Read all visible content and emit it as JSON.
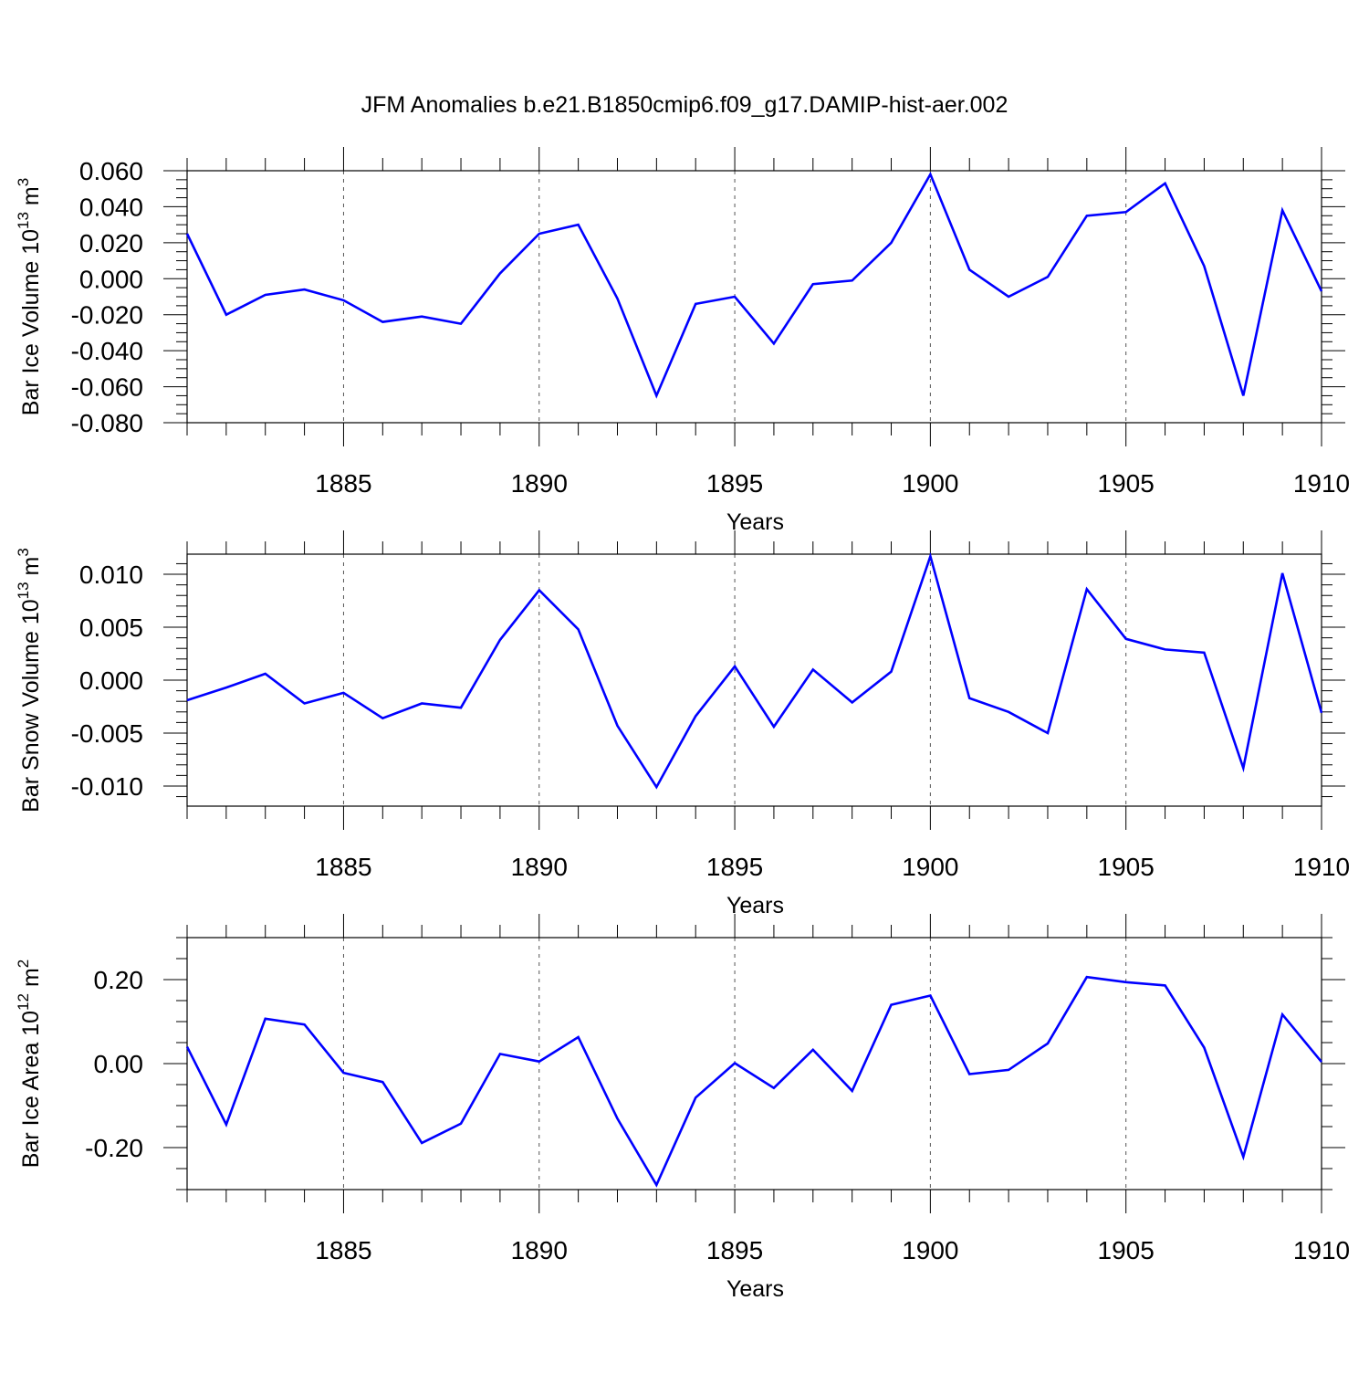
{
  "figure": {
    "title": "JFM Anomalies b.e21.B1850cmip6.f09_g17.DAMIP-hist-aer.002",
    "line_color": "#0000ff"
  },
  "chart_data": [
    {
      "type": "line",
      "ylabel": "Bar Ice Volume 10",
      "ylabel_sup": "13",
      "ylabel_unit": " m",
      "ylabel_unit_sup": "3",
      "xlabel": "Years",
      "xlim": [
        1881,
        1910
      ],
      "ylim": [
        -0.08,
        0.06
      ],
      "x_ticks": [
        1885,
        1890,
        1895,
        1900,
        1905,
        1910
      ],
      "y_ticks": [
        0.06,
        0.04,
        0.02,
        0.0,
        -0.02,
        -0.04,
        -0.06,
        -0.08
      ],
      "y_tick_labels": [
        "0.060",
        "0.040",
        "0.020",
        "0.000",
        "-0.020",
        "-0.040",
        "-0.060",
        "-0.080"
      ],
      "y_minor_step": 0.005,
      "x": [
        1881,
        1882,
        1883,
        1884,
        1885,
        1886,
        1887,
        1888,
        1889,
        1890,
        1891,
        1892,
        1893,
        1894,
        1895,
        1896,
        1897,
        1898,
        1899,
        1900,
        1901,
        1902,
        1903,
        1904,
        1905,
        1906,
        1907,
        1908,
        1909,
        1910
      ],
      "values": [
        0.025,
        -0.02,
        -0.009,
        -0.006,
        -0.012,
        -0.024,
        -0.021,
        -0.025,
        0.003,
        0.025,
        0.03,
        -0.011,
        -0.065,
        -0.014,
        -0.01,
        -0.036,
        -0.003,
        -0.001,
        0.02,
        0.058,
        0.005,
        -0.01,
        0.001,
        0.035,
        0.037,
        0.053,
        0.007,
        -0.065,
        0.038,
        -0.007
      ]
    },
    {
      "type": "line",
      "ylabel": "Bar Snow Volume 10",
      "ylabel_sup": "13",
      "ylabel_unit": " m",
      "ylabel_unit_sup": "3",
      "xlabel": "Years",
      "xlim": [
        1881,
        1910
      ],
      "ylim": [
        -0.0119,
        0.0119
      ],
      "x_ticks": [
        1885,
        1890,
        1895,
        1900,
        1905,
        1910
      ],
      "y_ticks": [
        0.01,
        0.005,
        0.0,
        -0.005,
        -0.01
      ],
      "y_tick_labels": [
        "0.010",
        "0.005",
        "0.000",
        "-0.005",
        "-0.010"
      ],
      "y_minor_step": 0.001,
      "x": [
        1881,
        1882,
        1883,
        1884,
        1885,
        1886,
        1887,
        1888,
        1889,
        1890,
        1891,
        1892,
        1893,
        1894,
        1895,
        1896,
        1897,
        1898,
        1899,
        1900,
        1901,
        1902,
        1903,
        1904,
        1905,
        1906,
        1907,
        1908,
        1909,
        1910
      ],
      "values": [
        -0.0019,
        -0.0007,
        0.0006,
        -0.0022,
        -0.0012,
        -0.0036,
        -0.0022,
        -0.0026,
        0.0038,
        0.0085,
        0.0048,
        -0.0043,
        -0.0101,
        -0.0034,
        0.0013,
        -0.0044,
        0.001,
        -0.0021,
        0.0008,
        0.0117,
        -0.0017,
        -0.003,
        -0.005,
        0.0086,
        0.0039,
        0.0029,
        0.0026,
        -0.0083,
        0.0101,
        -0.0031
      ]
    },
    {
      "type": "line",
      "ylabel": "Bar Ice Area 10",
      "ylabel_sup": "12",
      "ylabel_unit": " m",
      "ylabel_unit_sup": "2",
      "xlabel": "Years",
      "xlim": [
        1881,
        1910
      ],
      "ylim": [
        -0.3,
        0.3
      ],
      "x_ticks": [
        1885,
        1890,
        1895,
        1900,
        1905,
        1910
      ],
      "y_ticks": [
        0.2,
        0.0,
        -0.2
      ],
      "y_tick_labels": [
        "0.20",
        "0.00",
        "-0.20"
      ],
      "y_minor_step": 0.05,
      "x": [
        1881,
        1882,
        1883,
        1884,
        1885,
        1886,
        1887,
        1888,
        1889,
        1890,
        1891,
        1892,
        1893,
        1894,
        1895,
        1896,
        1897,
        1898,
        1899,
        1900,
        1901,
        1902,
        1903,
        1904,
        1905,
        1906,
        1907,
        1908,
        1909,
        1910
      ],
      "values": [
        0.04,
        -0.145,
        0.107,
        0.093,
        -0.022,
        -0.044,
        -0.189,
        -0.143,
        0.023,
        0.005,
        0.063,
        -0.131,
        -0.289,
        -0.081,
        0.001,
        -0.058,
        0.033,
        -0.065,
        0.14,
        0.162,
        -0.025,
        -0.015,
        0.048,
        0.206,
        0.194,
        0.186,
        0.038,
        -0.222,
        0.117,
        0.004
      ]
    }
  ]
}
